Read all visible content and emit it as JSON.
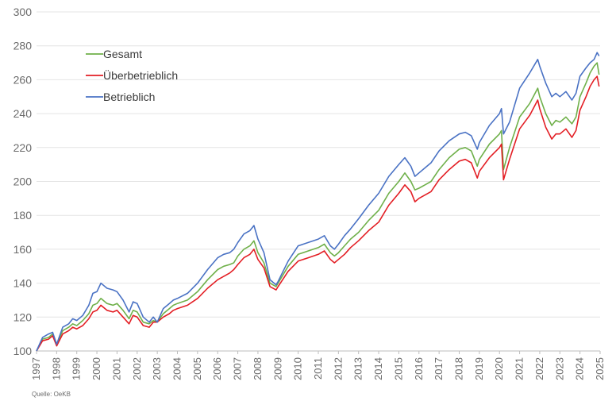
{
  "chart_data": {
    "type": "line",
    "title": "",
    "xlabel": "",
    "ylabel": "",
    "ylim": [
      100,
      300
    ],
    "xlim": [
      1997,
      2025
    ],
    "yticks": [
      100,
      120,
      140,
      160,
      180,
      200,
      220,
      240,
      260,
      280,
      300
    ],
    "xticks": [
      "1997",
      "1998",
      "1999",
      "2000",
      "2001",
      "2002",
      "2003",
      "2004",
      "2005",
      "2006",
      "2007",
      "2008",
      "2009",
      "2010",
      "2011",
      "2012",
      "2013",
      "2014",
      "2015",
      "2016",
      "2017",
      "2018",
      "2019",
      "2020",
      "2021",
      "2022",
      "2023",
      "2024",
      "2025"
    ],
    "grid": "horizontal",
    "legend_position": "top-left",
    "source": "Quelle: OeKB",
    "series": [
      {
        "name": "Gesamt",
        "color": "#6fb04a",
        "points": [
          [
            1997.0,
            100
          ],
          [
            1997.3,
            107
          ],
          [
            1997.6,
            108
          ],
          [
            1997.8,
            110
          ],
          [
            1998.0,
            104
          ],
          [
            1998.3,
            112
          ],
          [
            1998.6,
            114
          ],
          [
            1998.8,
            116
          ],
          [
            1999.0,
            115
          ],
          [
            1999.3,
            118
          ],
          [
            1999.6,
            122
          ],
          [
            1999.8,
            127
          ],
          [
            2000.0,
            128
          ],
          [
            2000.2,
            131
          ],
          [
            2000.5,
            128
          ],
          [
            2000.8,
            127
          ],
          [
            2001.0,
            128
          ],
          [
            2001.3,
            124
          ],
          [
            2001.6,
            119
          ],
          [
            2001.8,
            124
          ],
          [
            2002.0,
            123
          ],
          [
            2002.3,
            117
          ],
          [
            2002.6,
            116
          ],
          [
            2002.8,
            118
          ],
          [
            2003.0,
            117
          ],
          [
            2003.3,
            122
          ],
          [
            2003.6,
            125
          ],
          [
            2003.8,
            127
          ],
          [
            2004.0,
            128
          ],
          [
            2004.5,
            130
          ],
          [
            2005.0,
            135
          ],
          [
            2005.5,
            142
          ],
          [
            2006.0,
            148
          ],
          [
            2006.3,
            150
          ],
          [
            2006.6,
            151
          ],
          [
            2006.8,
            152
          ],
          [
            2007.0,
            156
          ],
          [
            2007.3,
            160
          ],
          [
            2007.6,
            162
          ],
          [
            2007.8,
            165
          ],
          [
            2008.0,
            158
          ],
          [
            2008.3,
            152
          ],
          [
            2008.6,
            140
          ],
          [
            2008.9,
            138
          ],
          [
            2009.0,
            140
          ],
          [
            2009.5,
            150
          ],
          [
            2010.0,
            157
          ],
          [
            2010.5,
            159
          ],
          [
            2011.0,
            161
          ],
          [
            2011.3,
            163
          ],
          [
            2011.6,
            158
          ],
          [
            2011.8,
            156
          ],
          [
            2012.0,
            158
          ],
          [
            2012.3,
            162
          ],
          [
            2012.6,
            166
          ],
          [
            2013.0,
            170
          ],
          [
            2013.5,
            177
          ],
          [
            2014.0,
            183
          ],
          [
            2014.5,
            193
          ],
          [
            2015.0,
            200
          ],
          [
            2015.3,
            205
          ],
          [
            2015.6,
            200
          ],
          [
            2015.8,
            195
          ],
          [
            2016.0,
            196
          ],
          [
            2016.3,
            198
          ],
          [
            2016.6,
            200
          ],
          [
            2017.0,
            207
          ],
          [
            2017.5,
            214
          ],
          [
            2018.0,
            219
          ],
          [
            2018.3,
            220
          ],
          [
            2018.6,
            218
          ],
          [
            2018.9,
            209
          ],
          [
            2019.0,
            213
          ],
          [
            2019.5,
            222
          ],
          [
            2020.0,
            228
          ],
          [
            2020.1,
            230
          ],
          [
            2020.2,
            207
          ],
          [
            2020.5,
            220
          ],
          [
            2021.0,
            238
          ],
          [
            2021.5,
            246
          ],
          [
            2021.9,
            255
          ],
          [
            2022.0,
            250
          ],
          [
            2022.3,
            240
          ],
          [
            2022.6,
            233
          ],
          [
            2022.8,
            236
          ],
          [
            2023.0,
            235
          ],
          [
            2023.3,
            238
          ],
          [
            2023.6,
            234
          ],
          [
            2023.8,
            238
          ],
          [
            2024.0,
            250
          ],
          [
            2024.3,
            258
          ],
          [
            2024.5,
            264
          ],
          [
            2024.7,
            268
          ],
          [
            2024.85,
            270
          ],
          [
            2024.95,
            263
          ]
        ]
      },
      {
        "name": "Überbetrieblich",
        "color": "#e31e24",
        "points": [
          [
            1997.0,
            100
          ],
          [
            1997.3,
            106
          ],
          [
            1997.6,
            107
          ],
          [
            1997.8,
            109
          ],
          [
            1998.0,
            103
          ],
          [
            1998.3,
            110
          ],
          [
            1998.6,
            112
          ],
          [
            1998.8,
            114
          ],
          [
            1999.0,
            113
          ],
          [
            1999.3,
            115
          ],
          [
            1999.6,
            119
          ],
          [
            1999.8,
            123
          ],
          [
            2000.0,
            124
          ],
          [
            2000.2,
            127
          ],
          [
            2000.5,
            124
          ],
          [
            2000.8,
            123
          ],
          [
            2001.0,
            124
          ],
          [
            2001.3,
            120
          ],
          [
            2001.6,
            116
          ],
          [
            2001.8,
            121
          ],
          [
            2002.0,
            120
          ],
          [
            2002.3,
            115
          ],
          [
            2002.6,
            114
          ],
          [
            2002.8,
            117
          ],
          [
            2003.0,
            117
          ],
          [
            2003.3,
            120
          ],
          [
            2003.6,
            122
          ],
          [
            2003.8,
            124
          ],
          [
            2004.0,
            125
          ],
          [
            2004.5,
            127
          ],
          [
            2005.0,
            131
          ],
          [
            2005.5,
            137
          ],
          [
            2006.0,
            142
          ],
          [
            2006.3,
            144
          ],
          [
            2006.6,
            146
          ],
          [
            2006.8,
            148
          ],
          [
            2007.0,
            151
          ],
          [
            2007.3,
            155
          ],
          [
            2007.6,
            157
          ],
          [
            2007.8,
            160
          ],
          [
            2008.0,
            154
          ],
          [
            2008.3,
            149
          ],
          [
            2008.6,
            138
          ],
          [
            2008.9,
            136
          ],
          [
            2009.0,
            138
          ],
          [
            2009.5,
            147
          ],
          [
            2010.0,
            153
          ],
          [
            2010.5,
            155
          ],
          [
            2011.0,
            157
          ],
          [
            2011.3,
            159
          ],
          [
            2011.6,
            154
          ],
          [
            2011.8,
            152
          ],
          [
            2012.0,
            154
          ],
          [
            2012.3,
            157
          ],
          [
            2012.6,
            161
          ],
          [
            2013.0,
            165
          ],
          [
            2013.5,
            171
          ],
          [
            2014.0,
            176
          ],
          [
            2014.5,
            186
          ],
          [
            2015.0,
            193
          ],
          [
            2015.3,
            198
          ],
          [
            2015.6,
            194
          ],
          [
            2015.8,
            188
          ],
          [
            2016.0,
            190
          ],
          [
            2016.3,
            192
          ],
          [
            2016.6,
            194
          ],
          [
            2017.0,
            201
          ],
          [
            2017.5,
            207
          ],
          [
            2018.0,
            212
          ],
          [
            2018.3,
            213
          ],
          [
            2018.6,
            211
          ],
          [
            2018.9,
            202
          ],
          [
            2019.0,
            206
          ],
          [
            2019.5,
            214
          ],
          [
            2020.0,
            220
          ],
          [
            2020.1,
            222
          ],
          [
            2020.2,
            201
          ],
          [
            2020.5,
            213
          ],
          [
            2021.0,
            231
          ],
          [
            2021.5,
            239
          ],
          [
            2021.9,
            248
          ],
          [
            2022.0,
            243
          ],
          [
            2022.3,
            232
          ],
          [
            2022.6,
            225
          ],
          [
            2022.8,
            228
          ],
          [
            2023.0,
            228
          ],
          [
            2023.3,
            231
          ],
          [
            2023.6,
            226
          ],
          [
            2023.8,
            230
          ],
          [
            2024.0,
            242
          ],
          [
            2024.3,
            250
          ],
          [
            2024.5,
            256
          ],
          [
            2024.7,
            260
          ],
          [
            2024.85,
            262
          ],
          [
            2024.95,
            256
          ]
        ]
      },
      {
        "name": "Betrieblich",
        "color": "#4a72c4",
        "points": [
          [
            1997.0,
            100
          ],
          [
            1997.3,
            108
          ],
          [
            1997.6,
            110
          ],
          [
            1997.8,
            111
          ],
          [
            1998.0,
            104
          ],
          [
            1998.3,
            114
          ],
          [
            1998.6,
            116
          ],
          [
            1998.8,
            119
          ],
          [
            1999.0,
            118
          ],
          [
            1999.3,
            121
          ],
          [
            1999.6,
            127
          ],
          [
            1999.8,
            134
          ],
          [
            2000.0,
            135
          ],
          [
            2000.2,
            140
          ],
          [
            2000.5,
            137
          ],
          [
            2000.8,
            136
          ],
          [
            2001.0,
            135
          ],
          [
            2001.3,
            130
          ],
          [
            2001.6,
            123
          ],
          [
            2001.8,
            129
          ],
          [
            2002.0,
            128
          ],
          [
            2002.3,
            120
          ],
          [
            2002.6,
            117
          ],
          [
            2002.8,
            120
          ],
          [
            2003.0,
            117
          ],
          [
            2003.3,
            125
          ],
          [
            2003.6,
            128
          ],
          [
            2003.8,
            130
          ],
          [
            2004.0,
            131
          ],
          [
            2004.5,
            134
          ],
          [
            2005.0,
            140
          ],
          [
            2005.5,
            148
          ],
          [
            2006.0,
            155
          ],
          [
            2006.3,
            157
          ],
          [
            2006.6,
            158
          ],
          [
            2006.8,
            160
          ],
          [
            2007.0,
            164
          ],
          [
            2007.3,
            169
          ],
          [
            2007.6,
            171
          ],
          [
            2007.8,
            174
          ],
          [
            2008.0,
            166
          ],
          [
            2008.3,
            158
          ],
          [
            2008.6,
            142
          ],
          [
            2008.9,
            139
          ],
          [
            2009.0,
            141
          ],
          [
            2009.5,
            153
          ],
          [
            2010.0,
            162
          ],
          [
            2010.5,
            164
          ],
          [
            2011.0,
            166
          ],
          [
            2011.3,
            168
          ],
          [
            2011.6,
            162
          ],
          [
            2011.8,
            160
          ],
          [
            2012.0,
            163
          ],
          [
            2012.3,
            168
          ],
          [
            2012.6,
            172
          ],
          [
            2013.0,
            178
          ],
          [
            2013.5,
            186
          ],
          [
            2014.0,
            193
          ],
          [
            2014.5,
            203
          ],
          [
            2015.0,
            210
          ],
          [
            2015.3,
            214
          ],
          [
            2015.6,
            209
          ],
          [
            2015.8,
            203
          ],
          [
            2016.0,
            205
          ],
          [
            2016.3,
            208
          ],
          [
            2016.6,
            211
          ],
          [
            2017.0,
            218
          ],
          [
            2017.5,
            224
          ],
          [
            2018.0,
            228
          ],
          [
            2018.3,
            229
          ],
          [
            2018.6,
            227
          ],
          [
            2018.9,
            219
          ],
          [
            2019.0,
            223
          ],
          [
            2019.5,
            233
          ],
          [
            2020.0,
            240
          ],
          [
            2020.1,
            243
          ],
          [
            2020.2,
            228
          ],
          [
            2020.5,
            235
          ],
          [
            2021.0,
            255
          ],
          [
            2021.5,
            264
          ],
          [
            2021.9,
            272
          ],
          [
            2022.0,
            268
          ],
          [
            2022.3,
            258
          ],
          [
            2022.6,
            250
          ],
          [
            2022.8,
            252
          ],
          [
            2023.0,
            250
          ],
          [
            2023.3,
            253
          ],
          [
            2023.6,
            248
          ],
          [
            2023.8,
            252
          ],
          [
            2024.0,
            262
          ],
          [
            2024.3,
            267
          ],
          [
            2024.5,
            270
          ],
          [
            2024.7,
            272
          ],
          [
            2024.85,
            276
          ],
          [
            2024.95,
            274
          ]
        ]
      }
    ]
  }
}
